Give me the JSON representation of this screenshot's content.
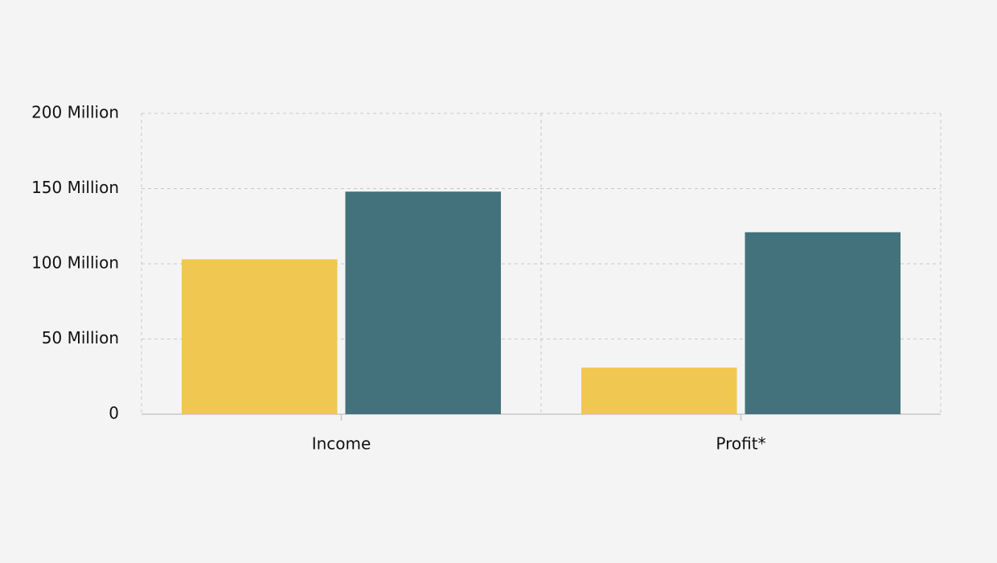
{
  "chart_data": {
    "type": "bar",
    "categories": [
      "Income",
      "Profit*"
    ],
    "series": [
      {
        "color": "#f0c750",
        "values": [
          103000000,
          31000000
        ]
      },
      {
        "color": "#43727c",
        "values": [
          148000000,
          121000000
        ]
      }
    ],
    "ylim": [
      0,
      200000000
    ],
    "yticks": [
      0,
      {
        "value": 50000000,
        "label": "50 Million"
      },
      {
        "value": 100000000,
        "label": "100 Million"
      },
      {
        "value": 150000000,
        "label": "150 Million"
      },
      {
        "value": 200000000,
        "label": "200 Million"
      }
    ],
    "grid": true
  }
}
